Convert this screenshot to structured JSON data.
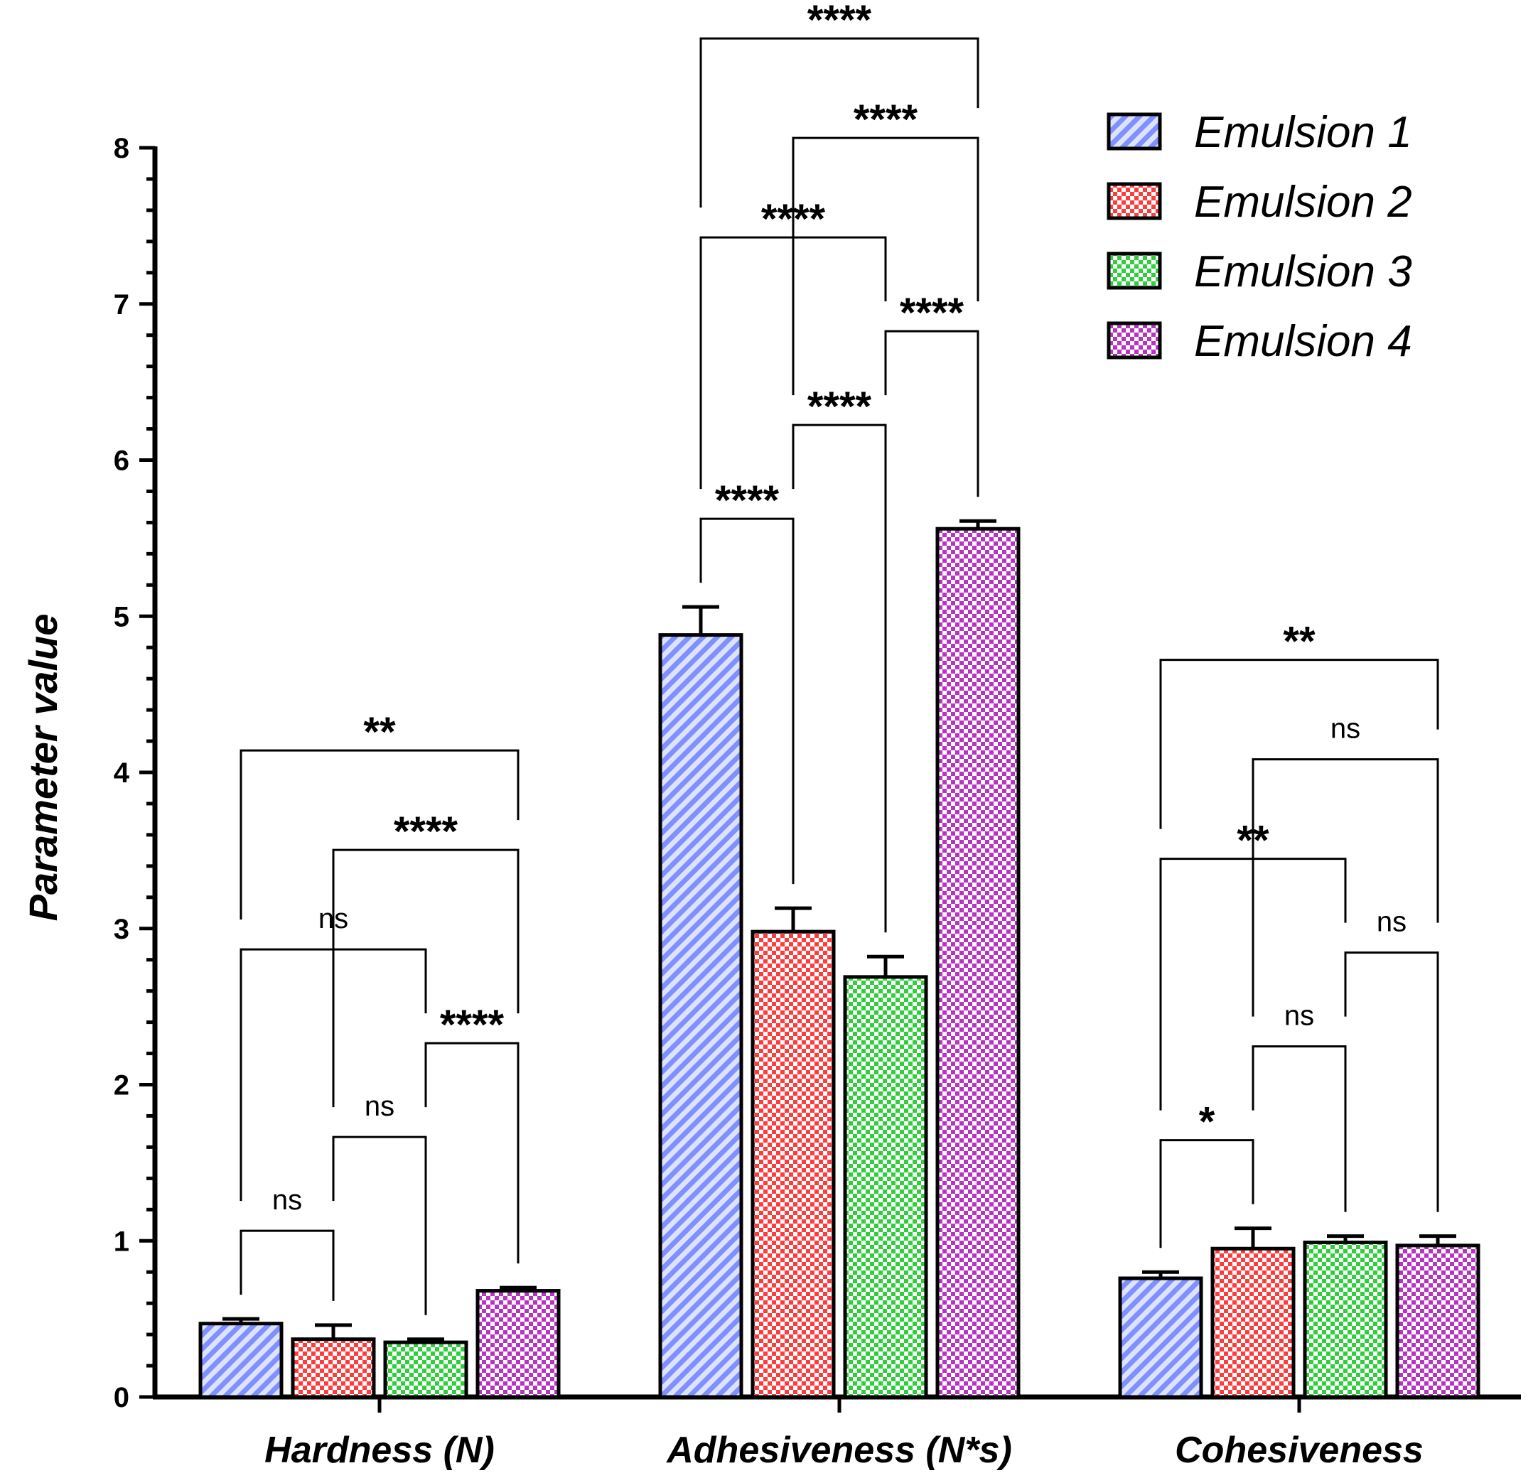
{
  "chart_data": {
    "type": "bar",
    "ylabel": "Parameter value",
    "ylim": [
      0,
      8
    ],
    "yticks": [
      "0",
      "1",
      "2",
      "3",
      "4",
      "5",
      "6",
      "7",
      "8"
    ],
    "categories": [
      "Hardness (N)",
      "Adhesiveness (N*s)",
      "Cohesiveness"
    ],
    "legend_position": "top-right",
    "series": [
      {
        "name": "Emulsion 1",
        "color": "#8fa0ff",
        "pattern": "diagonal-hatch",
        "values": [
          0.47,
          4.88,
          0.76
        ],
        "errors": [
          0.03,
          0.18,
          0.04
        ]
      },
      {
        "name": "Emulsion 2",
        "color": "#ff4c4c",
        "pattern": "checker",
        "values": [
          0.37,
          2.98,
          0.95
        ],
        "errors": [
          0.09,
          0.15,
          0.13
        ]
      },
      {
        "name": "Emulsion 3",
        "color": "#3fd34a",
        "pattern": "checker",
        "values": [
          0.35,
          2.69,
          0.99
        ],
        "errors": [
          0.02,
          0.13,
          0.04
        ]
      },
      {
        "name": "Emulsion 4",
        "color": "#c040c8",
        "pattern": "checker",
        "values": [
          0.68,
          5.56,
          0.97
        ],
        "errors": [
          0.02,
          0.05,
          0.06
        ]
      }
    ],
    "comparisons": [
      {
        "category": 0,
        "from": 0,
        "to": 1,
        "label": "ns"
      },
      {
        "category": 0,
        "from": 1,
        "to": 2,
        "label": "ns"
      },
      {
        "category": 0,
        "from": 2,
        "to": 3,
        "label": "****"
      },
      {
        "category": 0,
        "from": 0,
        "to": 2,
        "label": "ns"
      },
      {
        "category": 0,
        "from": 1,
        "to": 3,
        "label": "****"
      },
      {
        "category": 0,
        "from": 0,
        "to": 3,
        "label": "**"
      },
      {
        "category": 1,
        "from": 0,
        "to": 1,
        "label": "****"
      },
      {
        "category": 1,
        "from": 2,
        "to": 3,
        "label": "****"
      },
      {
        "category": 1,
        "from": 1,
        "to": 2,
        "label": "****"
      },
      {
        "category": 1,
        "from": 0,
        "to": 2,
        "label": "****"
      },
      {
        "category": 1,
        "from": 1,
        "to": 3,
        "label": "****"
      },
      {
        "category": 1,
        "from": 0,
        "to": 3,
        "label": "****"
      },
      {
        "category": 2,
        "from": 0,
        "to": 1,
        "label": "*"
      },
      {
        "category": 2,
        "from": 1,
        "to": 2,
        "label": "ns"
      },
      {
        "category": 2,
        "from": 2,
        "to": 3,
        "label": "ns"
      },
      {
        "category": 2,
        "from": 0,
        "to": 2,
        "label": "**"
      },
      {
        "category": 2,
        "from": 1,
        "to": 3,
        "label": "ns"
      },
      {
        "category": 2,
        "from": 0,
        "to": 3,
        "label": "**"
      }
    ]
  }
}
